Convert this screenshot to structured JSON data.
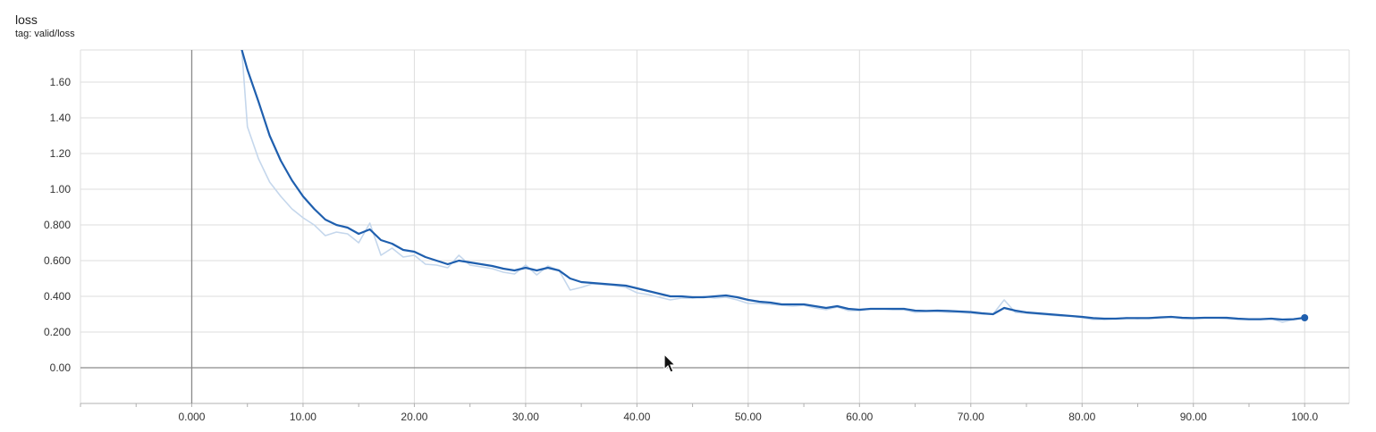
{
  "card": {
    "title": "loss",
    "tag": "tag: valid/loss"
  },
  "colors": {
    "smoothed": "#1f5fae",
    "raw": "#c5d7ec",
    "grid": "#dddddd",
    "axis": "#8a8a8a",
    "marker": "#1f5fae"
  },
  "chart_data": {
    "type": "line",
    "title": "loss",
    "subtitle": "tag: valid/loss",
    "xlabel": "",
    "ylabel": "",
    "xlim": [
      -10,
      104
    ],
    "ylim": [
      -0.2,
      1.78
    ],
    "x_ticks": [
      0,
      10,
      20,
      30,
      40,
      50,
      60,
      70,
      80,
      90,
      100
    ],
    "x_tick_labels": [
      "0.000",
      "10.00",
      "20.00",
      "30.00",
      "40.00",
      "50.00",
      "60.00",
      "70.00",
      "80.00",
      "90.00",
      "100.0"
    ],
    "y_ticks": [
      0,
      0.2,
      0.4,
      0.6,
      0.8,
      1.0,
      1.2,
      1.4,
      1.6
    ],
    "y_tick_labels": [
      "0.00",
      "0.200",
      "0.400",
      "0.600",
      "0.800",
      "1.00",
      "1.20",
      "1.40",
      "1.60"
    ],
    "grid": true,
    "series": [
      {
        "style": "raw",
        "x": [
          4.5,
          5,
          6,
          7,
          8,
          9,
          10,
          11,
          12,
          13,
          14,
          15,
          16,
          17,
          18,
          19,
          20,
          21,
          22,
          23,
          24,
          25,
          26,
          27,
          28,
          29,
          30,
          31,
          32,
          33,
          34,
          35,
          36,
          37,
          38,
          39,
          40,
          41,
          42,
          43,
          44,
          45,
          46,
          47,
          48,
          49,
          50,
          51,
          52,
          53,
          54,
          55,
          56,
          57,
          58,
          59,
          60,
          61,
          62,
          63,
          64,
          65,
          66,
          67,
          68,
          69,
          70,
          71,
          72,
          73,
          74,
          75,
          76,
          77,
          78,
          79,
          80,
          81,
          82,
          83,
          84,
          85,
          86,
          87,
          88,
          89,
          90,
          91,
          92,
          93,
          94,
          95,
          96,
          97,
          98,
          99,
          100
        ],
        "y": [
          1.78,
          1.35,
          1.17,
          1.04,
          0.96,
          0.89,
          0.84,
          0.8,
          0.74,
          0.76,
          0.75,
          0.7,
          0.81,
          0.63,
          0.67,
          0.62,
          0.63,
          0.58,
          0.575,
          0.56,
          0.63,
          0.575,
          0.565,
          0.555,
          0.535,
          0.525,
          0.575,
          0.52,
          0.57,
          0.545,
          0.435,
          0.45,
          0.47,
          0.465,
          0.46,
          0.45,
          0.42,
          0.41,
          0.395,
          0.38,
          0.39,
          0.39,
          0.4,
          0.39,
          0.395,
          0.38,
          0.36,
          0.36,
          0.355,
          0.35,
          0.345,
          0.35,
          0.335,
          0.325,
          0.34,
          0.32,
          0.32,
          0.33,
          0.33,
          0.325,
          0.325,
          0.31,
          0.315,
          0.315,
          0.31,
          0.31,
          0.305,
          0.3,
          0.3,
          0.38,
          0.31,
          0.305,
          0.3,
          0.295,
          0.29,
          0.29,
          0.28,
          0.27,
          0.27,
          0.275,
          0.28,
          0.275,
          0.28,
          0.285,
          0.285,
          0.275,
          0.275,
          0.28,
          0.28,
          0.275,
          0.27,
          0.27,
          0.27,
          0.275,
          0.255,
          0.27,
          0.28
        ]
      },
      {
        "style": "smoothed",
        "x": [
          4.5,
          5,
          6,
          7,
          8,
          9,
          10,
          11,
          12,
          13,
          14,
          15,
          16,
          17,
          18,
          19,
          20,
          21,
          22,
          23,
          24,
          25,
          26,
          27,
          28,
          29,
          30,
          31,
          32,
          33,
          34,
          35,
          36,
          37,
          38,
          39,
          40,
          41,
          42,
          43,
          44,
          45,
          46,
          47,
          48,
          49,
          50,
          51,
          52,
          53,
          54,
          55,
          56,
          57,
          58,
          59,
          60,
          61,
          62,
          63,
          64,
          65,
          66,
          67,
          68,
          69,
          70,
          71,
          72,
          73,
          74,
          75,
          76,
          77,
          78,
          79,
          80,
          81,
          82,
          83,
          84,
          85,
          86,
          87,
          88,
          89,
          90,
          91,
          92,
          93,
          94,
          95,
          96,
          97,
          98,
          99,
          100
        ],
        "y": [
          1.78,
          1.67,
          1.49,
          1.3,
          1.16,
          1.05,
          0.96,
          0.89,
          0.83,
          0.8,
          0.785,
          0.75,
          0.775,
          0.715,
          0.695,
          0.66,
          0.65,
          0.62,
          0.6,
          0.58,
          0.6,
          0.59,
          0.58,
          0.57,
          0.555,
          0.545,
          0.56,
          0.545,
          0.56,
          0.545,
          0.5,
          0.48,
          0.475,
          0.47,
          0.465,
          0.46,
          0.445,
          0.43,
          0.415,
          0.4,
          0.4,
          0.395,
          0.395,
          0.4,
          0.405,
          0.395,
          0.38,
          0.37,
          0.365,
          0.355,
          0.355,
          0.355,
          0.345,
          0.335,
          0.345,
          0.33,
          0.325,
          0.33,
          0.33,
          0.33,
          0.33,
          0.32,
          0.318,
          0.32,
          0.318,
          0.315,
          0.312,
          0.305,
          0.3,
          0.335,
          0.32,
          0.31,
          0.305,
          0.3,
          0.295,
          0.29,
          0.285,
          0.278,
          0.275,
          0.275,
          0.278,
          0.278,
          0.278,
          0.282,
          0.285,
          0.28,
          0.278,
          0.28,
          0.28,
          0.28,
          0.275,
          0.272,
          0.272,
          0.275,
          0.27,
          0.272,
          0.28
        ]
      }
    ]
  }
}
